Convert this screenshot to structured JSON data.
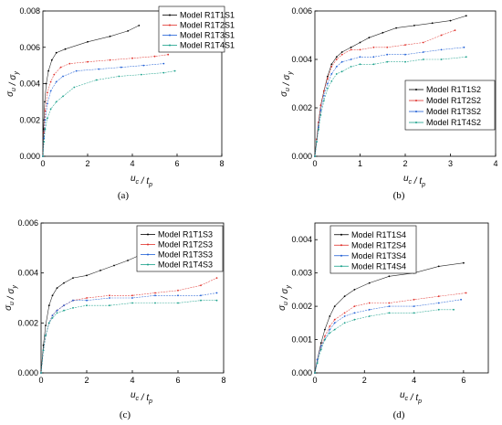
{
  "figure": {
    "panels": [
      "(a)",
      "(b)",
      "(c)",
      "(d)"
    ]
  },
  "colors": {
    "series": [
      "#000000",
      "#e0302a",
      "#1f5fd6",
      "#17a08a"
    ],
    "axis": "#000000"
  },
  "chart_data": [
    {
      "type": "line",
      "panel_label": "(a)",
      "xlabel": "u_c / t_p",
      "ylabel": "σ_u / σ_y",
      "xlim": [
        0,
        8
      ],
      "ylim": [
        0,
        0.008
      ],
      "xticks": [
        "0",
        "2",
        "4",
        "6",
        "8"
      ],
      "yticks": [
        "0.000",
        "0.002",
        "0.004",
        "0.006",
        "0.008"
      ],
      "legend": "top-right",
      "grid": false,
      "series": [
        {
          "name": "Model R1T1S1",
          "x": [
            0,
            0.03,
            0.08,
            0.15,
            0.25,
            0.4,
            0.6,
            1.0,
            2.0,
            3.0,
            3.8,
            4.3
          ],
          "y": [
            0,
            0.0015,
            0.003,
            0.004,
            0.0047,
            0.0053,
            0.0057,
            0.0059,
            0.0063,
            0.0066,
            0.0069,
            0.0072
          ]
        },
        {
          "name": "Model R1T2S1",
          "x": [
            0,
            0.05,
            0.1,
            0.2,
            0.35,
            0.5,
            0.8,
            1.2,
            2.0,
            3.0,
            4.0,
            5.0,
            5.6
          ],
          "y": [
            0,
            0.0013,
            0.0025,
            0.0035,
            0.0041,
            0.0045,
            0.0049,
            0.0051,
            0.0052,
            0.0053,
            0.0054,
            0.0055,
            0.0056
          ]
        },
        {
          "name": "Model R1T3S1",
          "x": [
            0,
            0.05,
            0.1,
            0.2,
            0.35,
            0.6,
            0.9,
            1.5,
            2.5,
            3.5,
            4.5,
            5.4
          ],
          "y": [
            0,
            0.001,
            0.002,
            0.0029,
            0.0036,
            0.0041,
            0.0044,
            0.0047,
            0.0048,
            0.0049,
            0.005,
            0.0051
          ]
        },
        {
          "name": "Model R1T4S1",
          "x": [
            0,
            0.05,
            0.1,
            0.2,
            0.35,
            0.6,
            0.9,
            1.4,
            2.4,
            3.4,
            4.4,
            5.4,
            5.9
          ],
          "y": [
            0,
            0.0008,
            0.0015,
            0.0021,
            0.0026,
            0.003,
            0.0033,
            0.0038,
            0.0042,
            0.0044,
            0.0045,
            0.0046,
            0.0047
          ]
        }
      ]
    },
    {
      "type": "line",
      "panel_label": "(b)",
      "xlabel": "u_c / t_p",
      "ylabel": "σ_u / σ_y",
      "xlim": [
        0,
        4
      ],
      "ylim": [
        0,
        0.006
      ],
      "xticks": [
        "0",
        "1",
        "2",
        "3",
        "4"
      ],
      "yticks": [
        "0.000",
        "0.002",
        "0.004",
        "0.006"
      ],
      "legend": "bottom-right",
      "grid": false,
      "series": [
        {
          "name": "Model R1T1S2",
          "x": [
            0,
            0.04,
            0.08,
            0.13,
            0.2,
            0.28,
            0.37,
            0.48,
            0.6,
            0.8,
            1.0,
            1.2,
            1.5,
            1.8,
            2.2,
            2.6,
            3.0,
            3.35
          ],
          "y": [
            0,
            0.0007,
            0.0014,
            0.0021,
            0.0027,
            0.0033,
            0.0038,
            0.0041,
            0.0043,
            0.0045,
            0.0047,
            0.0049,
            0.0051,
            0.0053,
            0.0054,
            0.0055,
            0.0056,
            0.0058
          ]
        },
        {
          "name": "Model R1T2S2",
          "x": [
            0,
            0.04,
            0.08,
            0.13,
            0.2,
            0.28,
            0.37,
            0.48,
            0.6,
            0.8,
            1.0,
            1.3,
            1.6,
            2.0,
            2.4,
            2.8,
            3.1
          ],
          "y": [
            0,
            0.0007,
            0.0014,
            0.0021,
            0.0027,
            0.0032,
            0.0037,
            0.004,
            0.0042,
            0.0044,
            0.0044,
            0.0045,
            0.0045,
            0.0046,
            0.0047,
            0.005,
            0.0052
          ]
        },
        {
          "name": "Model R1T3S2",
          "x": [
            0,
            0.04,
            0.08,
            0.13,
            0.2,
            0.28,
            0.37,
            0.48,
            0.6,
            0.8,
            1.0,
            1.3,
            1.6,
            2.0,
            2.4,
            2.8,
            3.3
          ],
          "y": [
            0,
            0.0006,
            0.0012,
            0.0019,
            0.0025,
            0.003,
            0.0034,
            0.0037,
            0.0039,
            0.004,
            0.0041,
            0.0041,
            0.0042,
            0.0042,
            0.0043,
            0.0044,
            0.0045
          ]
        },
        {
          "name": "Model R1T4S2",
          "x": [
            0,
            0.04,
            0.08,
            0.13,
            0.2,
            0.28,
            0.37,
            0.48,
            0.6,
            0.8,
            1.0,
            1.3,
            1.6,
            2.0,
            2.4,
            2.8,
            3.35
          ],
          "y": [
            0,
            0.0006,
            0.0011,
            0.0017,
            0.0023,
            0.0028,
            0.0031,
            0.0034,
            0.0035,
            0.0037,
            0.0038,
            0.0038,
            0.0039,
            0.0039,
            0.004,
            0.004,
            0.0041
          ]
        }
      ]
    },
    {
      "type": "line",
      "panel_label": "(c)",
      "xlabel": "u_c / t_p",
      "ylabel": "σ_u / σ_y",
      "xlim": [
        0,
        8
      ],
      "ylim": [
        0,
        0.006
      ],
      "xticks": [
        "0",
        "2",
        "4",
        "6",
        "8"
      ],
      "yticks": [
        "0.000",
        "0.002",
        "0.004",
        "0.006"
      ],
      "legend": "top-right",
      "grid": false,
      "series": [
        {
          "name": "Model R1T1S3",
          "x": [
            0,
            0.1,
            0.2,
            0.35,
            0.5,
            0.7,
            1.0,
            1.4,
            2.0,
            2.6,
            3.2,
            3.8,
            4.3
          ],
          "y": [
            0,
            0.0011,
            0.0019,
            0.0027,
            0.0031,
            0.0034,
            0.0036,
            0.0038,
            0.0039,
            0.0041,
            0.0043,
            0.0045,
            0.0047
          ]
        },
        {
          "name": "Model R1T2S3",
          "x": [
            0,
            0.1,
            0.2,
            0.35,
            0.5,
            0.7,
            1.0,
            1.4,
            2.0,
            3.0,
            4.0,
            5.0,
            6.0,
            7.0,
            7.7
          ],
          "y": [
            0,
            0.0009,
            0.0015,
            0.002,
            0.0023,
            0.0025,
            0.0027,
            0.0029,
            0.003,
            0.0031,
            0.0031,
            0.0032,
            0.0033,
            0.0035,
            0.0038
          ]
        },
        {
          "name": "Model R1T3S3",
          "x": [
            0,
            0.1,
            0.2,
            0.35,
            0.5,
            0.7,
            1.0,
            1.4,
            2.0,
            3.0,
            4.0,
            5.0,
            6.0,
            7.0,
            7.7
          ],
          "y": [
            0,
            0.0009,
            0.0015,
            0.002,
            0.0023,
            0.0025,
            0.0027,
            0.0029,
            0.0029,
            0.003,
            0.003,
            0.0031,
            0.0031,
            0.0031,
            0.0032
          ]
        },
        {
          "name": "Model R1T4S3",
          "x": [
            0,
            0.1,
            0.2,
            0.35,
            0.5,
            0.7,
            1.0,
            1.4,
            2.0,
            3.0,
            4.0,
            5.0,
            6.0,
            7.0,
            7.7
          ],
          "y": [
            0,
            0.0009,
            0.0015,
            0.002,
            0.0022,
            0.0024,
            0.0025,
            0.0026,
            0.0027,
            0.0027,
            0.0028,
            0.0028,
            0.0028,
            0.0029,
            0.0029
          ]
        }
      ]
    },
    {
      "type": "line",
      "panel_label": "(d)",
      "xlabel": "u_c / t_p",
      "ylabel": "σ_u / σ_y",
      "xlim": [
        0,
        7
      ],
      "ylim": [
        0,
        0.0045
      ],
      "xticks": [
        "0",
        "2",
        "4",
        "6"
      ],
      "yticks": [
        "0.000",
        "0.001",
        "0.002",
        "0.003",
        "0.004"
      ],
      "legend": "top-right",
      "grid": false,
      "series": [
        {
          "name": "Model R1T1S4",
          "x": [
            0,
            0.1,
            0.25,
            0.4,
            0.6,
            0.8,
            1.2,
            1.6,
            2.2,
            3.0,
            4.0,
            5.0,
            6.0
          ],
          "y": [
            0,
            0.0004,
            0.0009,
            0.0013,
            0.0017,
            0.002,
            0.0023,
            0.0025,
            0.0027,
            0.0029,
            0.003,
            0.0032,
            0.0033
          ]
        },
        {
          "name": "Model R1T2S4",
          "x": [
            0,
            0.1,
            0.25,
            0.4,
            0.6,
            0.8,
            1.2,
            1.6,
            2.2,
            3.0,
            4.0,
            5.0,
            6.1
          ],
          "y": [
            0,
            0.0004,
            0.0008,
            0.0011,
            0.0014,
            0.0016,
            0.0018,
            0.002,
            0.0021,
            0.0021,
            0.0022,
            0.0023,
            0.0024
          ]
        },
        {
          "name": "Model R1T3S4",
          "x": [
            0,
            0.1,
            0.25,
            0.4,
            0.6,
            0.8,
            1.2,
            1.6,
            2.2,
            3.0,
            4.0,
            5.0,
            5.9
          ],
          "y": [
            0,
            0.0004,
            0.0008,
            0.001,
            0.0013,
            0.0015,
            0.0017,
            0.0018,
            0.0019,
            0.002,
            0.002,
            0.0021,
            0.0022
          ]
        },
        {
          "name": "Model R1T4S4",
          "x": [
            0,
            0.1,
            0.25,
            0.4,
            0.6,
            0.8,
            1.2,
            1.6,
            2.2,
            3.0,
            4.0,
            5.0,
            5.6
          ],
          "y": [
            0,
            0.0003,
            0.0007,
            0.001,
            0.0012,
            0.0013,
            0.0015,
            0.0016,
            0.0017,
            0.0018,
            0.0018,
            0.0019,
            0.0019
          ]
        }
      ]
    }
  ]
}
